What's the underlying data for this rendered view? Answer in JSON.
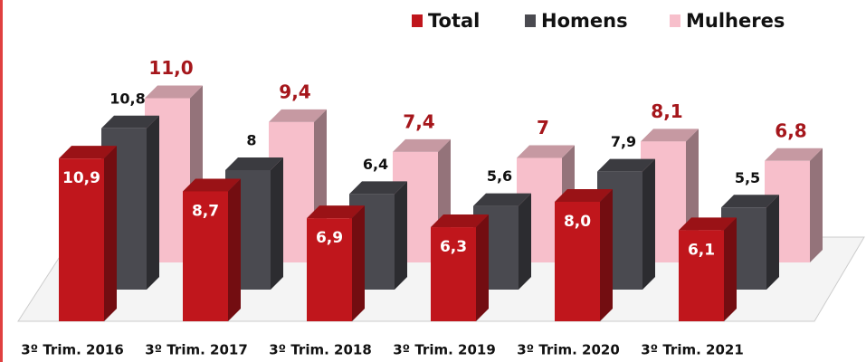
{
  "chart_data": {
    "type": "bar3d",
    "categories": [
      "3º Trim. 2016",
      "3º Trim. 2017",
      "3º Trim. 2018",
      "3º Trim. 2019",
      "3º Trim. 2020",
      "3º Trim. 2021"
    ],
    "series": [
      {
        "name": "Total",
        "color": "#c0161c",
        "values": [
          10.9,
          8.7,
          6.9,
          6.3,
          8.0,
          6.1
        ],
        "value_labels": [
          "10,9",
          "8,7",
          "6,9",
          "6,3",
          "8,0",
          "6,1"
        ]
      },
      {
        "name": "Homens",
        "color": "#4a4a50",
        "values": [
          10.8,
          8,
          6.4,
          5.6,
          7.9,
          5.5
        ],
        "value_labels": [
          "10,8",
          "8",
          "6,4",
          "5,6",
          "7,9",
          "5,5"
        ]
      },
      {
        "name": "Mulheres",
        "color": "#f7bfcb",
        "values": [
          11.0,
          9.4,
          7.4,
          7,
          8.1,
          6.8
        ],
        "value_labels": [
          "11,0",
          "9,4",
          "7,4",
          "7",
          "8,1",
          "6,8"
        ]
      }
    ],
    "legend": "top-right"
  }
}
